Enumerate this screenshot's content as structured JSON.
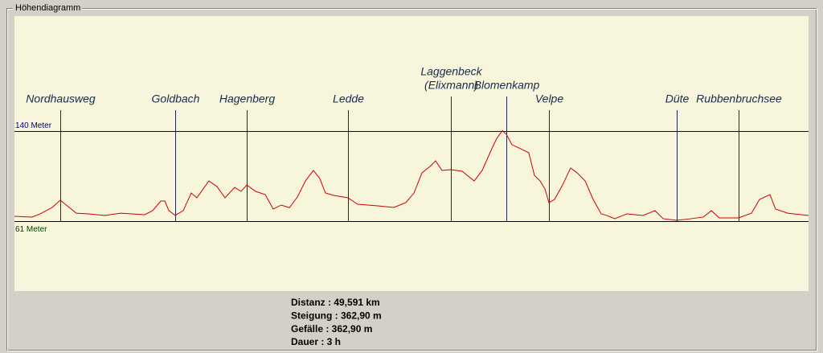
{
  "chart_data": {
    "type": "line",
    "title": "Höhendiagramm",
    "x": [
      0,
      1.1,
      1.61,
      2.36,
      2.86,
      3.36,
      3.86,
      4.62,
      5.62,
      6.63,
      8.13,
      8.63,
      9.14,
      9.39,
      9.64,
      10.04,
      10.54,
      11.04,
      11.39,
      12.14,
      12.65,
      13.15,
      13.75,
      14.15,
      14.51,
      15.06,
      15.66,
      16.16,
      16.66,
      17.17,
      17.67,
      18.17,
      18.67,
      19.07,
      19.42,
      19.93,
      20.83,
      21.43,
      22.69,
      23.69,
      24.44,
      24.95,
      25.45,
      25.95,
      26.3,
      26.7,
      27.25,
      27.96,
      28.71,
      29.21,
      29.81,
      30.12,
      30.47,
      30.72,
      31.07,
      31.62,
      32.12,
      32.47,
      32.83,
      33.13,
      33.38,
      33.73,
      34.23,
      34.73,
      35.14,
      35.64,
      36.14,
      36.64,
      36.99,
      37.49,
      38.25,
      39.25,
      40.0,
      40.51,
      41.36,
      42.26,
      43.02,
      43.52,
      44.02,
      45.22,
      46.03,
      46.53,
      47.18,
      47.53,
      48.29,
      49.591
    ],
    "values": [
      65.3,
      64.6,
      67.4,
      73,
      79.3,
      73.7,
      68,
      67.4,
      66,
      68,
      66.7,
      70.2,
      78.6,
      78.6,
      70.2,
      66,
      70.2,
      85.6,
      81.4,
      96.1,
      91.2,
      81.4,
      90.5,
      87,
      92.6,
      87,
      84.2,
      71.6,
      75.1,
      72.8,
      82.1,
      96.1,
      105.3,
      98.2,
      85.6,
      83.5,
      81.4,
      75.8,
      74.4,
      73,
      77.2,
      85.6,
      103.2,
      108.8,
      113.7,
      105.3,
      106,
      104.6,
      96.1,
      105.3,
      124.2,
      133.3,
      140,
      136.8,
      127.7,
      124.2,
      120.7,
      101,
      96.1,
      89.1,
      77.2,
      80,
      92.6,
      107.4,
      103.2,
      96.1,
      80,
      67.4,
      66,
      63.2,
      67.4,
      66,
      70.2,
      63.2,
      61.8,
      63.2,
      64.6,
      70.2,
      63.9,
      63.9,
      68,
      80,
      84.2,
      71.6,
      68,
      66
    ],
    "color": "#cc0000",
    "xlim": [
      0,
      49.591
    ],
    "ylim": [
      0,
      240
    ],
    "reference_lines": [
      {
        "value": 140,
        "label": "140 Meter",
        "color": "#000080"
      },
      {
        "value": 61,
        "label": "61 Meter",
        "color": "#000000"
      }
    ],
    "markers": [
      {
        "x": 2.86,
        "label": [
          "Nordhausweg"
        ]
      },
      {
        "x": 10.04,
        "label": [
          "Goldbach"
        ]
      },
      {
        "x": 14.51,
        "label": [
          "Hagenberg"
        ]
      },
      {
        "x": 20.83,
        "label": [
          "Ledde"
        ]
      },
      {
        "x": 27.25,
        "label": [
          "Laggenbeck",
          "(Elixmann)"
        ]
      },
      {
        "x": 30.72,
        "label": [
          "Blomenkamp"
        ]
      },
      {
        "x": 33.38,
        "label": [
          "Velpe"
        ]
      },
      {
        "x": 41.36,
        "label": [
          "Düte"
        ]
      },
      {
        "x": 45.22,
        "label": [
          "Rubbenbruchsee"
        ]
      }
    ]
  },
  "summary": [
    "Distanz : 49,591 km",
    "Steigung : 362,90 m",
    "Gefälle : 362,90 m",
    "Dauer : 3 h"
  ]
}
